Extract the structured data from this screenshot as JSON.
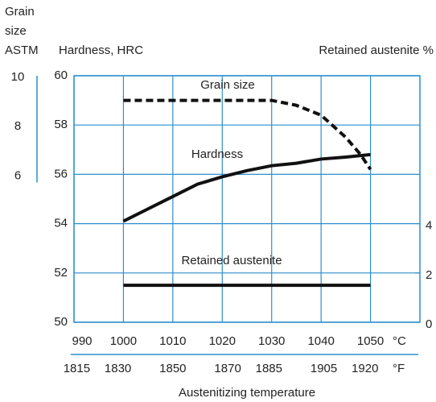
{
  "chart_data": {
    "type": "line",
    "title_left_lines": [
      "Grain",
      "size",
      "ASTM"
    ],
    "ylabel": "Hardness, HRC",
    "y2label": "Retained austenite %",
    "xlabel": "Austenitizing temperature",
    "x_unit": "°C",
    "x2_unit": "°F",
    "xlim": [
      990,
      1060
    ],
    "xticks": [
      990,
      1000,
      1010,
      1020,
      1030,
      1040,
      1050
    ],
    "x2lim": [
      1814,
      1940
    ],
    "x2ticks": [
      1815,
      1830,
      1850,
      1870,
      1885,
      1905,
      1920
    ],
    "ylim": [
      50,
      60
    ],
    "yticks": [
      50,
      52,
      54,
      56,
      58,
      60
    ],
    "y2lim": [
      0,
      10
    ],
    "y2ticks": [
      0,
      2,
      4
    ],
    "y3lim": [
      0,
      10
    ],
    "y3ticks": [
      6,
      8,
      10
    ],
    "grid": true,
    "grid_color": "#2b8fd0",
    "series": [
      {
        "name": "Grain size",
        "color": "#111111",
        "dashed": true,
        "axis": "y3",
        "x": [
          1000,
          1030,
          1035,
          1040,
          1045,
          1048,
          1050
        ],
        "values": [
          9,
          9,
          8.8,
          8.4,
          7.5,
          6.8,
          6.2
        ]
      },
      {
        "name": "Hardness",
        "color": "#111111",
        "dashed": false,
        "axis": "y",
        "x": [
          1000,
          1005,
          1010,
          1015,
          1020,
          1025,
          1030,
          1035,
          1040,
          1045,
          1050
        ],
        "values": [
          54.1,
          54.6,
          55.1,
          55.6,
          55.9,
          56.15,
          56.35,
          56.45,
          56.62,
          56.7,
          56.8
        ]
      },
      {
        "name": "Retained austenite",
        "color": "#111111",
        "dashed": false,
        "axis": "y2",
        "x": [
          1000,
          1050
        ],
        "values": [
          1.5,
          1.5
        ]
      }
    ]
  }
}
